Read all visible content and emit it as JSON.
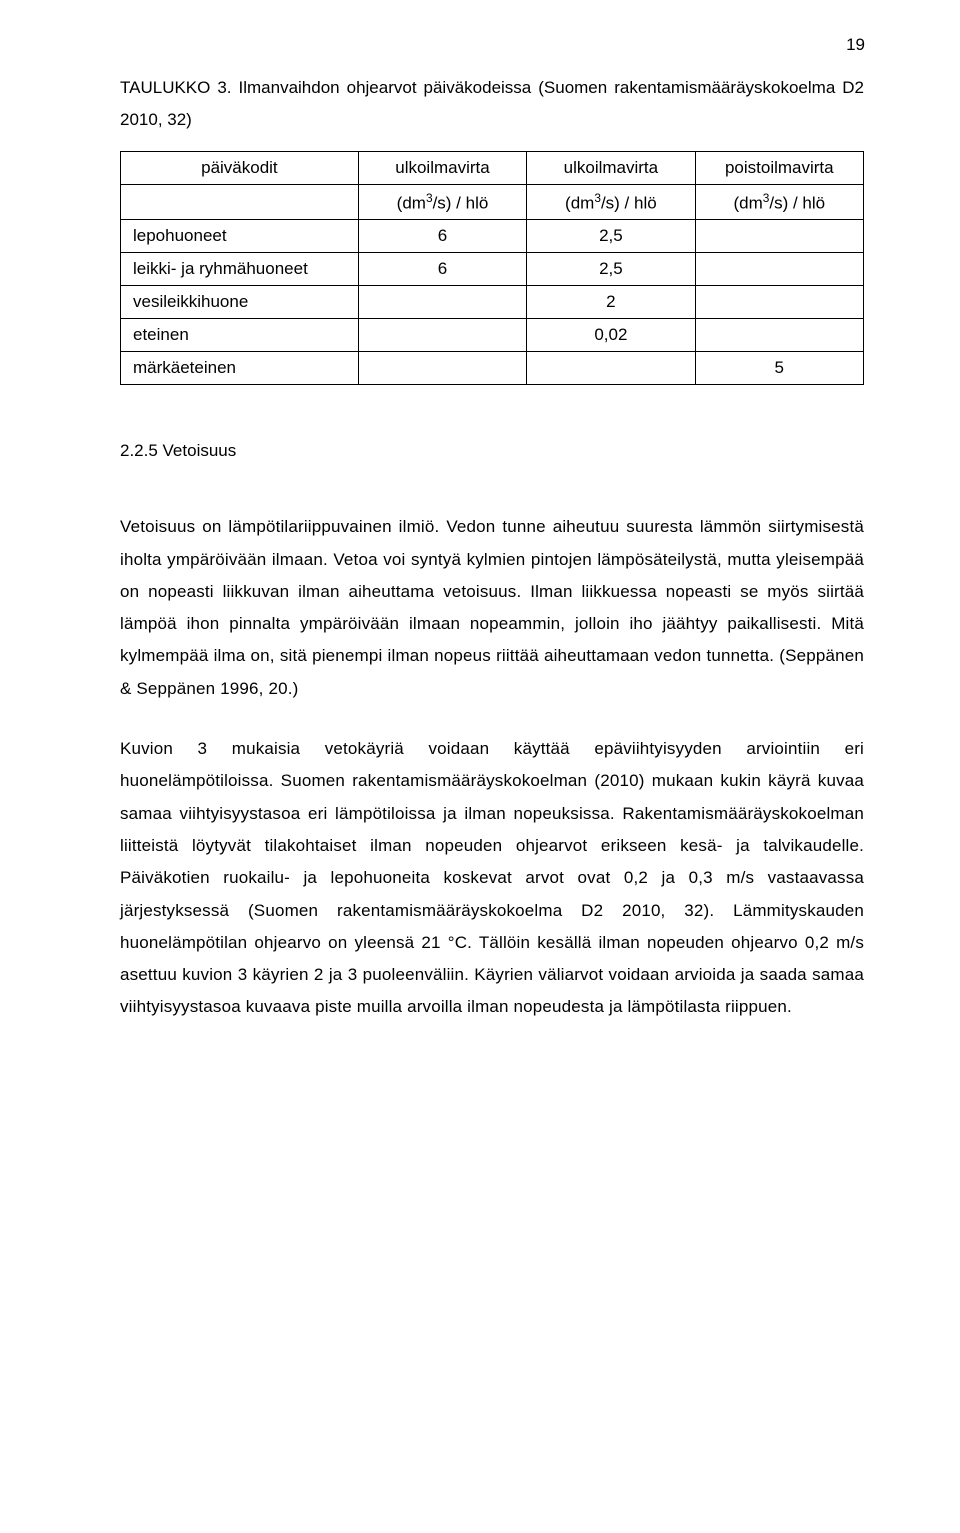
{
  "page_number": "19",
  "intro": "TAULUKKO 3. Ilmanvaihdon ohjearvot päiväkodeissa (Suomen rakentamis­määräyskokoelma D2 2010, 32)",
  "table": {
    "col_headers": [
      "päiväkodit",
      "ulkoilmavirta",
      "ulkoilmavirta",
      "poistoilmavirta"
    ],
    "sub_headers": [
      "",
      "(dm",
      "(dm",
      "(dm"
    ],
    "sub_unit": "/s) / hlö",
    "sup3": "3",
    "rows": [
      {
        "label": "lepohuoneet",
        "c1": "6",
        "c2": "2,5",
        "c3": ""
      },
      {
        "label": "leikki- ja ryhmähuoneet",
        "c1": "6",
        "c2": "2,5",
        "c3": ""
      },
      {
        "label": "vesileikkihuone",
        "c1": "",
        "c2": "2",
        "c3": ""
      },
      {
        "label": "eteinen",
        "c1": "",
        "c2": "0,02",
        "c3": ""
      },
      {
        "label": "märkäeteinen",
        "c1": "",
        "c2": "",
        "c3": "5"
      }
    ]
  },
  "section_heading": "2.2.5   Vetoisuus",
  "para1": "Vetoisuus on lämpötilariippuvainen ilmiö. Vedon tunne aiheutuu suuresta lämmön siirtymisestä iholta ympäröivään ilmaan. Vetoa voi syntyä kylmien pintojen lämpösäteilystä, mutta yleisempää on nopeasti liikkuvan ilman aiheuttama vetoisuus. Ilman liikkuessa nopeasti se myös siirtää lämpöä ihon pinnalta ympäröivään ilmaan nopeammin, jolloin iho jäähtyy paikallisesti. Mitä kylmempää ilma on, sitä pienempi ilman nopeus riittää aiheuttamaan vedon tunnetta. (Seppänen & Seppänen 1996, 20.)",
  "para2": "Kuvion 3 mukaisia vetokäyriä voidaan käyttää epäviihtyisyyden arviointiin eri huonelämpötiloissa. Suomen rakentamismääräyskokoelman (2010) mukaan kukin käyrä kuvaa samaa viihtyisyystasoa eri lämpötiloissa ja ilman nopeuksissa. Rakentamismääräyskokoelman liitteistä löytyvät tilakohtaiset ilman nopeuden ohjearvot erikseen kesä- ja talvikaudelle. Päiväkotien ruokailu- ja lepohuoneita koskevat arvot ovat 0,2 ja 0,3 m/s vastaavassa järjestyksessä (Suomen rakentamismääräyskokoelma D2 2010, 32). Lämmityskauden huonelämpötilan ohjearvo on yleensä 21 °C. Tällöin kesällä ilman nopeuden ohjearvo 0,2 m/s asettuu kuvion 3 käyrien 2 ja 3 puoleenväliin. Käyrien väliarvot voidaan arvioida ja saada samaa viihtyisyystasoa kuvaava piste muilla arvoilla ilman nopeudesta ja lämpötilasta riippuen."
}
